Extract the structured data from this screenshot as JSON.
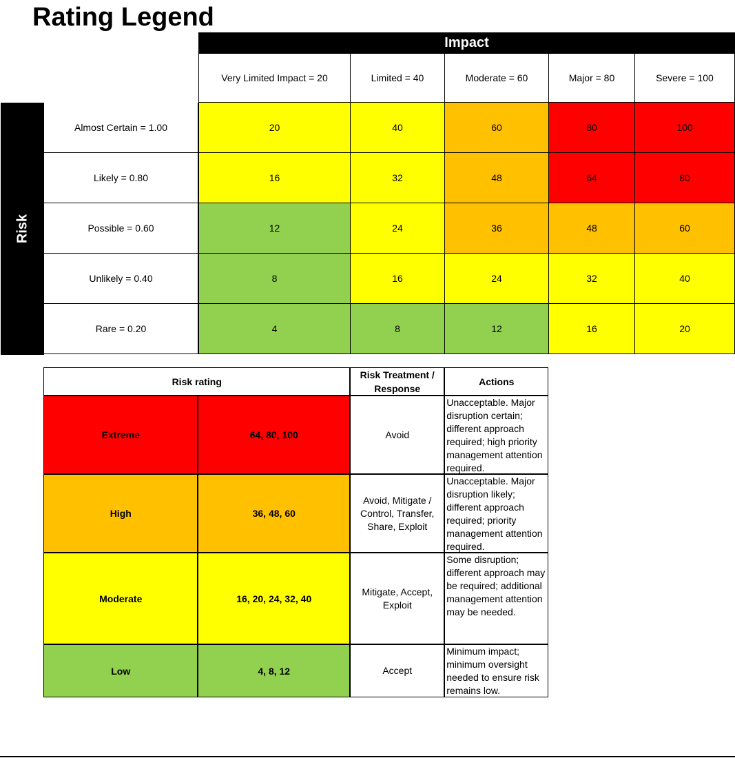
{
  "title": "Rating Legend",
  "matrix": {
    "impact_label": "Impact",
    "risk_label": "Risk",
    "impact_headers": [
      "Very Limited Impact = 20",
      "Limited = 40",
      "Moderate = 60",
      "Major = 80",
      "Severe = 100"
    ],
    "rows": [
      {
        "label": "Almost Certain = 1.00",
        "values": [
          "20",
          "40",
          "60",
          "80",
          "100"
        ],
        "colors": [
          "yellow",
          "yellow",
          "orange",
          "red",
          "red"
        ]
      },
      {
        "label": "Likely = 0.80",
        "values": [
          "16",
          "32",
          "48",
          "64",
          "80"
        ],
        "colors": [
          "yellow",
          "yellow",
          "orange",
          "red",
          "red"
        ]
      },
      {
        "label": "Possible = 0.60",
        "values": [
          "12",
          "24",
          "36",
          "48",
          "60"
        ],
        "colors": [
          "green",
          "yellow",
          "orange",
          "orange",
          "orange"
        ]
      },
      {
        "label": "Unlikely = 0.40",
        "values": [
          "8",
          "16",
          "24",
          "32",
          "40"
        ],
        "colors": [
          "green",
          "yellow",
          "yellow",
          "yellow",
          "yellow"
        ]
      },
      {
        "label": "Rare = 0.20",
        "values": [
          "4",
          "8",
          "12",
          "16",
          "20"
        ],
        "colors": [
          "green",
          "green",
          "green",
          "yellow",
          "yellow"
        ]
      }
    ]
  },
  "legend": {
    "headers": {
      "rating": "Risk rating",
      "treatment": "Risk Treatment / Response",
      "actions": "Actions"
    },
    "rows": [
      {
        "level": "Extreme",
        "scores": "64, 80, 100",
        "color": "red",
        "treatment": "Avoid",
        "actions": "Unacceptable. Major disruption certain; different approach required; high priority management attention required."
      },
      {
        "level": "High",
        "scores": "36, 48, 60",
        "color": "orange",
        "treatment": "Avoid, Mitigate / Control, Transfer, Share, Exploit",
        "actions": "Unacceptable. Major disruption likely; different approach required; priority management attention required."
      },
      {
        "level": "Moderate",
        "scores": "16, 20, 24, 32, 40",
        "color": "yellow",
        "treatment": "Mitigate, Accept, Exploit",
        "actions": "Some disruption; different approach may be required; additional management attention may be needed."
      },
      {
        "level": "Low",
        "scores": "4, 8, 12",
        "color": "green",
        "treatment": "Accept",
        "actions": "Minimum impact; minimum oversight needed to ensure risk remains low."
      }
    ]
  },
  "colors": {
    "red": "#ff0000",
    "orange": "#ffc000",
    "yellow": "#ffff00",
    "green": "#92d050"
  }
}
